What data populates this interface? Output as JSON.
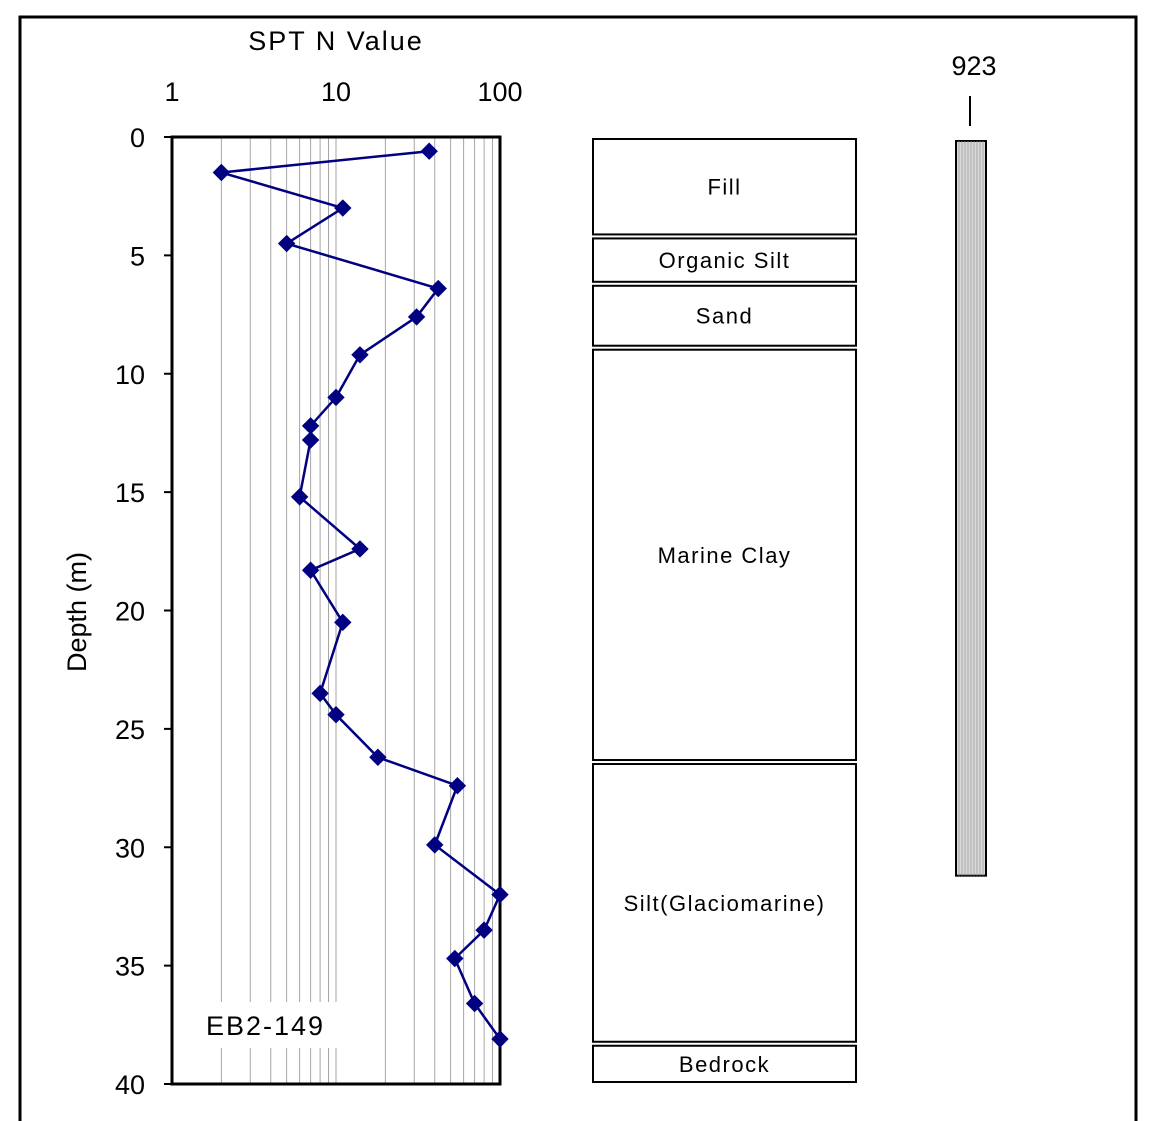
{
  "chart_data": {
    "type": "scatter",
    "title": "",
    "xlabel": "SPT N Value",
    "ylabel": "Depth (m)",
    "x_scale": "log",
    "xlim": [
      1,
      100
    ],
    "ylim": [
      0,
      40
    ],
    "y_inverted": true,
    "x_ticks": [
      "1",
      "10",
      "100"
    ],
    "y_ticks": [
      "0",
      "5",
      "10",
      "15",
      "20",
      "25",
      "30",
      "35",
      "40"
    ],
    "grid": "vertical minor log gridlines",
    "series": [
      {
        "name": "EB2-149",
        "color": "#000080",
        "marker": "diamond",
        "points": [
          {
            "n": 37,
            "depth": 0.6
          },
          {
            "n": 2,
            "depth": 1.5
          },
          {
            "n": 11,
            "depth": 3.0
          },
          {
            "n": 5,
            "depth": 4.5
          },
          {
            "n": 42,
            "depth": 6.4
          },
          {
            "n": 31,
            "depth": 7.6
          },
          {
            "n": 14,
            "depth": 9.2
          },
          {
            "n": 10,
            "depth": 11.0
          },
          {
            "n": 7,
            "depth": 12.2
          },
          {
            "n": 7,
            "depth": 12.8
          },
          {
            "n": 6,
            "depth": 15.2
          },
          {
            "n": 14,
            "depth": 17.4
          },
          {
            "n": 7,
            "depth": 18.3
          },
          {
            "n": 11,
            "depth": 20.5
          },
          {
            "n": 8,
            "depth": 23.5
          },
          {
            "n": 10,
            "depth": 24.4
          },
          {
            "n": 18,
            "depth": 26.2
          },
          {
            "n": 55,
            "depth": 27.4
          },
          {
            "n": 40,
            "depth": 29.9
          },
          {
            "n": 100,
            "depth": 32.0
          },
          {
            "n": 80,
            "depth": 33.5
          },
          {
            "n": 53,
            "depth": 34.7
          },
          {
            "n": 70,
            "depth": 36.6
          },
          {
            "n": 100,
            "depth": 38.1
          }
        ]
      }
    ],
    "annotations": [
      "EB2-149"
    ],
    "strata": [
      {
        "name": "Fill",
        "top": 0,
        "bottom": 4.2
      },
      {
        "name": "Organic Silt",
        "top": 4.2,
        "bottom": 6.2
      },
      {
        "name": "Sand",
        "top": 6.2,
        "bottom": 8.9
      },
      {
        "name": "Marine Clay",
        "top": 8.9,
        "bottom": 26.4
      },
      {
        "name": "Silt(Glaciomarine)",
        "top": 26.4,
        "bottom": 38.3
      },
      {
        "name": "Bedrock",
        "top": 38.3,
        "bottom": 40
      }
    ],
    "pile": {
      "label": "923",
      "top": 0,
      "bottom": 31.2
    }
  }
}
